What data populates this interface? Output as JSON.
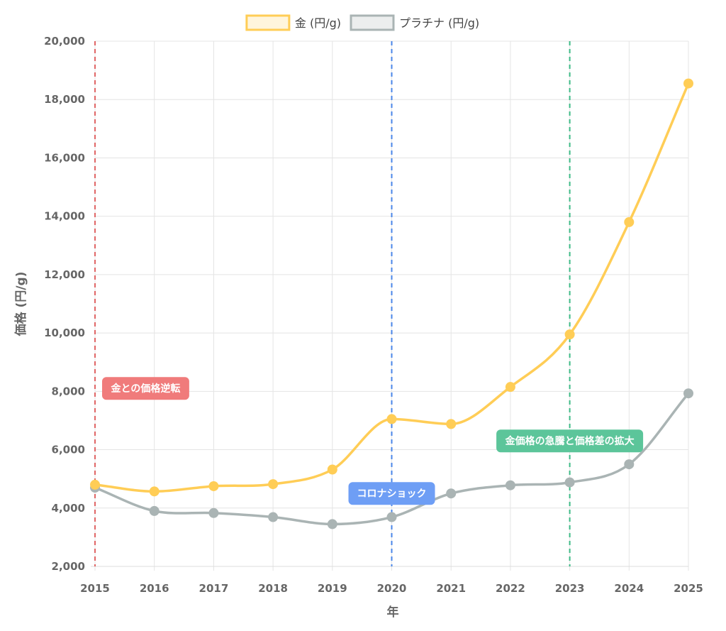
{
  "chart_data": {
    "type": "line",
    "x": [
      2015,
      2016,
      2017,
      2018,
      2019,
      2020,
      2021,
      2022,
      2023,
      2024,
      2025
    ],
    "categories": [
      "2015",
      "2016",
      "2017",
      "2018",
      "2019",
      "2020",
      "2021",
      "2022",
      "2023",
      "2024",
      "2025"
    ],
    "series": [
      {
        "name": "金 (円/g)",
        "color": "#ffcd56",
        "fill": "#fff5dc",
        "values": [
          4800,
          4570,
          4750,
          4820,
          5320,
          7050,
          6880,
          8150,
          9950,
          13800,
          18550
        ]
      },
      {
        "name": "プラチナ (円/g)",
        "color": "#aab4b4",
        "fill": "#eceeee",
        "values": [
          4700,
          3900,
          3830,
          3690,
          3450,
          3690,
          4500,
          4780,
          4880,
          5500,
          7930
        ]
      }
    ],
    "ylim": [
      2000,
      20000
    ],
    "yticks": [
      2000,
      4000,
      6000,
      8000,
      10000,
      12000,
      14000,
      16000,
      18000,
      20000
    ],
    "ytick_labels": [
      "2,000",
      "4,000",
      "6,000",
      "8,000",
      "10,000",
      "12,000",
      "14,000",
      "16,000",
      "18,000",
      "20,000"
    ],
    "xlabel": "年",
    "ylabel": "価格 (円/g)",
    "grid": true,
    "legend_position": "top",
    "annotations": [
      {
        "x": 2015,
        "label": "金との価格逆転",
        "color": "#f07b7b",
        "line_color": "#e06666",
        "label_value": 8100,
        "label_align": "right"
      },
      {
        "x": 2020,
        "label": "コロナショック",
        "color": "#6e9ef5",
        "line_color": "#4a86e8",
        "label_value": 4500,
        "label_align": "center"
      },
      {
        "x": 2023,
        "label": "金価格の急騰と価格差の拡大",
        "color": "#5cc59a",
        "line_color": "#3dba86",
        "label_value": 6300,
        "label_align": "center"
      }
    ]
  }
}
